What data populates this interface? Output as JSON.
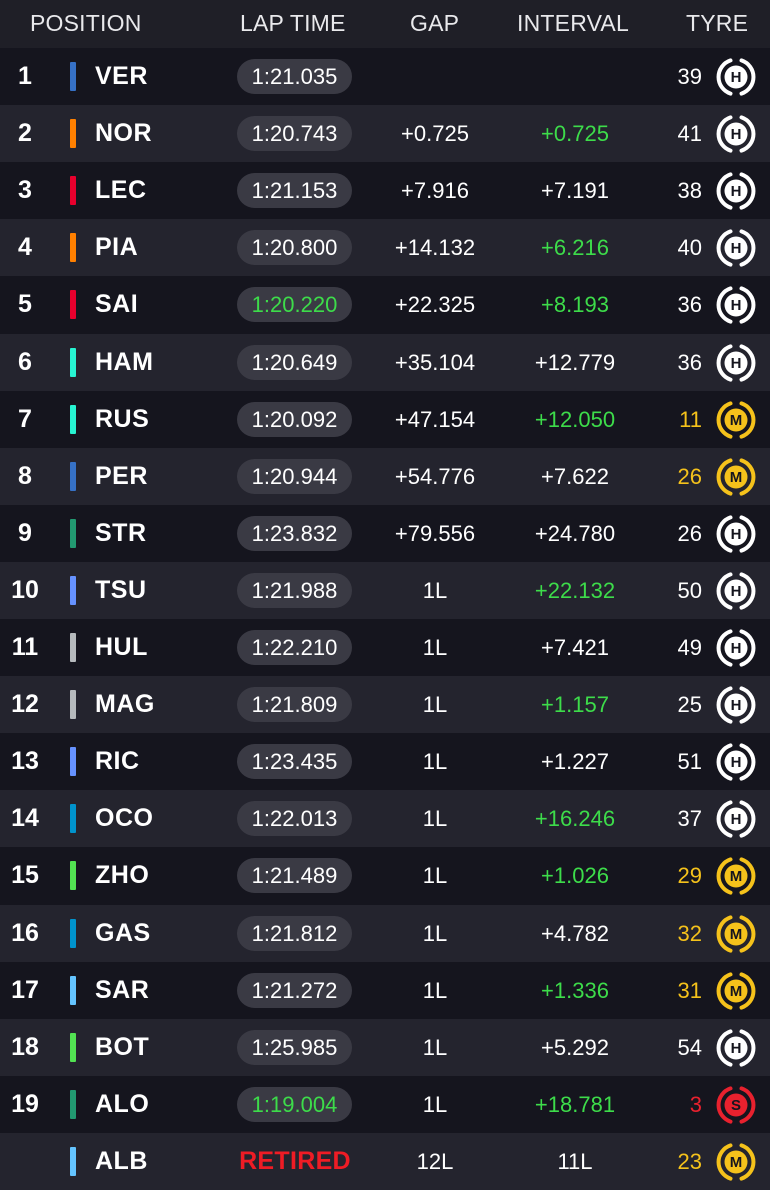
{
  "header": {
    "position": "POSITION",
    "lap_time": "LAP TIME",
    "gap": "GAP",
    "interval": "INTERVAL",
    "tyre": "TYRE"
  },
  "colors": {
    "fastest_green": "#3ddc4a",
    "retired_red": "#ee1c25",
    "hard_tyre": "#ffffff",
    "medium_tyre": "#f5c21b",
    "soft_tyre": "#e8212e"
  },
  "rows": [
    {
      "pos": "1",
      "code": "VER",
      "team_color": "#3671c6",
      "lap_time": "1:21.035",
      "lap_fast": false,
      "retired": false,
      "gap": "",
      "interval": "",
      "interval_green": false,
      "laps": "39",
      "tyre": "H",
      "tyre_color": "#ffffff"
    },
    {
      "pos": "2",
      "code": "NOR",
      "team_color": "#ff8000",
      "lap_time": "1:20.743",
      "lap_fast": false,
      "retired": false,
      "gap": "+0.725",
      "interval": "+0.725",
      "interval_green": true,
      "laps": "41",
      "tyre": "H",
      "tyre_color": "#ffffff"
    },
    {
      "pos": "3",
      "code": "LEC",
      "team_color": "#e8002d",
      "lap_time": "1:21.153",
      "lap_fast": false,
      "retired": false,
      "gap": "+7.916",
      "interval": "+7.191",
      "interval_green": false,
      "laps": "38",
      "tyre": "H",
      "tyre_color": "#ffffff"
    },
    {
      "pos": "4",
      "code": "PIA",
      "team_color": "#ff8000",
      "lap_time": "1:20.800",
      "lap_fast": false,
      "retired": false,
      "gap": "+14.132",
      "interval": "+6.216",
      "interval_green": true,
      "laps": "40",
      "tyre": "H",
      "tyre_color": "#ffffff"
    },
    {
      "pos": "5",
      "code": "SAI",
      "team_color": "#e8002d",
      "lap_time": "1:20.220",
      "lap_fast": true,
      "retired": false,
      "gap": "+22.325",
      "interval": "+8.193",
      "interval_green": true,
      "laps": "36",
      "tyre": "H",
      "tyre_color": "#ffffff"
    },
    {
      "pos": "6",
      "code": "HAM",
      "team_color": "#27f4d2",
      "lap_time": "1:20.649",
      "lap_fast": false,
      "retired": false,
      "gap": "+35.104",
      "interval": "+12.779",
      "interval_green": false,
      "laps": "36",
      "tyre": "H",
      "tyre_color": "#ffffff"
    },
    {
      "pos": "7",
      "code": "RUS",
      "team_color": "#27f4d2",
      "lap_time": "1:20.092",
      "lap_fast": false,
      "retired": false,
      "gap": "+47.154",
      "interval": "+12.050",
      "interval_green": true,
      "laps": "11",
      "tyre": "M",
      "tyre_color": "#f5c21b"
    },
    {
      "pos": "8",
      "code": "PER",
      "team_color": "#3671c6",
      "lap_time": "1:20.944",
      "lap_fast": false,
      "retired": false,
      "gap": "+54.776",
      "interval": "+7.622",
      "interval_green": false,
      "laps": "26",
      "tyre": "M",
      "tyre_color": "#f5c21b"
    },
    {
      "pos": "9",
      "code": "STR",
      "team_color": "#229971",
      "lap_time": "1:23.832",
      "lap_fast": false,
      "retired": false,
      "gap": "+79.556",
      "interval": "+24.780",
      "interval_green": false,
      "laps": "26",
      "tyre": "H",
      "tyre_color": "#ffffff"
    },
    {
      "pos": "10",
      "code": "TSU",
      "team_color": "#6692ff",
      "lap_time": "1:21.988",
      "lap_fast": false,
      "retired": false,
      "gap": "1L",
      "interval": "+22.132",
      "interval_green": true,
      "laps": "50",
      "tyre": "H",
      "tyre_color": "#ffffff"
    },
    {
      "pos": "11",
      "code": "HUL",
      "team_color": "#b6babd",
      "lap_time": "1:22.210",
      "lap_fast": false,
      "retired": false,
      "gap": "1L",
      "interval": "+7.421",
      "interval_green": false,
      "laps": "49",
      "tyre": "H",
      "tyre_color": "#ffffff"
    },
    {
      "pos": "12",
      "code": "MAG",
      "team_color": "#b6babd",
      "lap_time": "1:21.809",
      "lap_fast": false,
      "retired": false,
      "gap": "1L",
      "interval": "+1.157",
      "interval_green": true,
      "laps": "25",
      "tyre": "H",
      "tyre_color": "#ffffff"
    },
    {
      "pos": "13",
      "code": "RIC",
      "team_color": "#6692ff",
      "lap_time": "1:23.435",
      "lap_fast": false,
      "retired": false,
      "gap": "1L",
      "interval": "+1.227",
      "interval_green": false,
      "laps": "51",
      "tyre": "H",
      "tyre_color": "#ffffff"
    },
    {
      "pos": "14",
      "code": "OCO",
      "team_color": "#0093cc",
      "lap_time": "1:22.013",
      "lap_fast": false,
      "retired": false,
      "gap": "1L",
      "interval": "+16.246",
      "interval_green": true,
      "laps": "37",
      "tyre": "H",
      "tyre_color": "#ffffff"
    },
    {
      "pos": "15",
      "code": "ZHO",
      "team_color": "#52e252",
      "lap_time": "1:21.489",
      "lap_fast": false,
      "retired": false,
      "gap": "1L",
      "interval": "+1.026",
      "interval_green": true,
      "laps": "29",
      "tyre": "M",
      "tyre_color": "#f5c21b"
    },
    {
      "pos": "16",
      "code": "GAS",
      "team_color": "#0093cc",
      "lap_time": "1:21.812",
      "lap_fast": false,
      "retired": false,
      "gap": "1L",
      "interval": "+4.782",
      "interval_green": false,
      "laps": "32",
      "tyre": "M",
      "tyre_color": "#f5c21b"
    },
    {
      "pos": "17",
      "code": "SAR",
      "team_color": "#64c4ff",
      "lap_time": "1:21.272",
      "lap_fast": false,
      "retired": false,
      "gap": "1L",
      "interval": "+1.336",
      "interval_green": true,
      "laps": "31",
      "tyre": "M",
      "tyre_color": "#f5c21b"
    },
    {
      "pos": "18",
      "code": "BOT",
      "team_color": "#52e252",
      "lap_time": "1:25.985",
      "lap_fast": false,
      "retired": false,
      "gap": "1L",
      "interval": "+5.292",
      "interval_green": false,
      "laps": "54",
      "tyre": "H",
      "tyre_color": "#ffffff"
    },
    {
      "pos": "19",
      "code": "ALO",
      "team_color": "#229971",
      "lap_time": "1:19.004",
      "lap_fast": true,
      "retired": false,
      "gap": "1L",
      "interval": "+18.781",
      "interval_green": true,
      "laps": "3",
      "tyre": "S",
      "tyre_color": "#e8212e"
    },
    {
      "pos": "",
      "code": "ALB",
      "team_color": "#64c4ff",
      "lap_time": "RETIRED",
      "lap_fast": false,
      "retired": true,
      "gap": "12L",
      "interval": "11L",
      "interval_green": false,
      "laps": "23",
      "tyre": "M",
      "tyre_color": "#f5c21b"
    }
  ]
}
